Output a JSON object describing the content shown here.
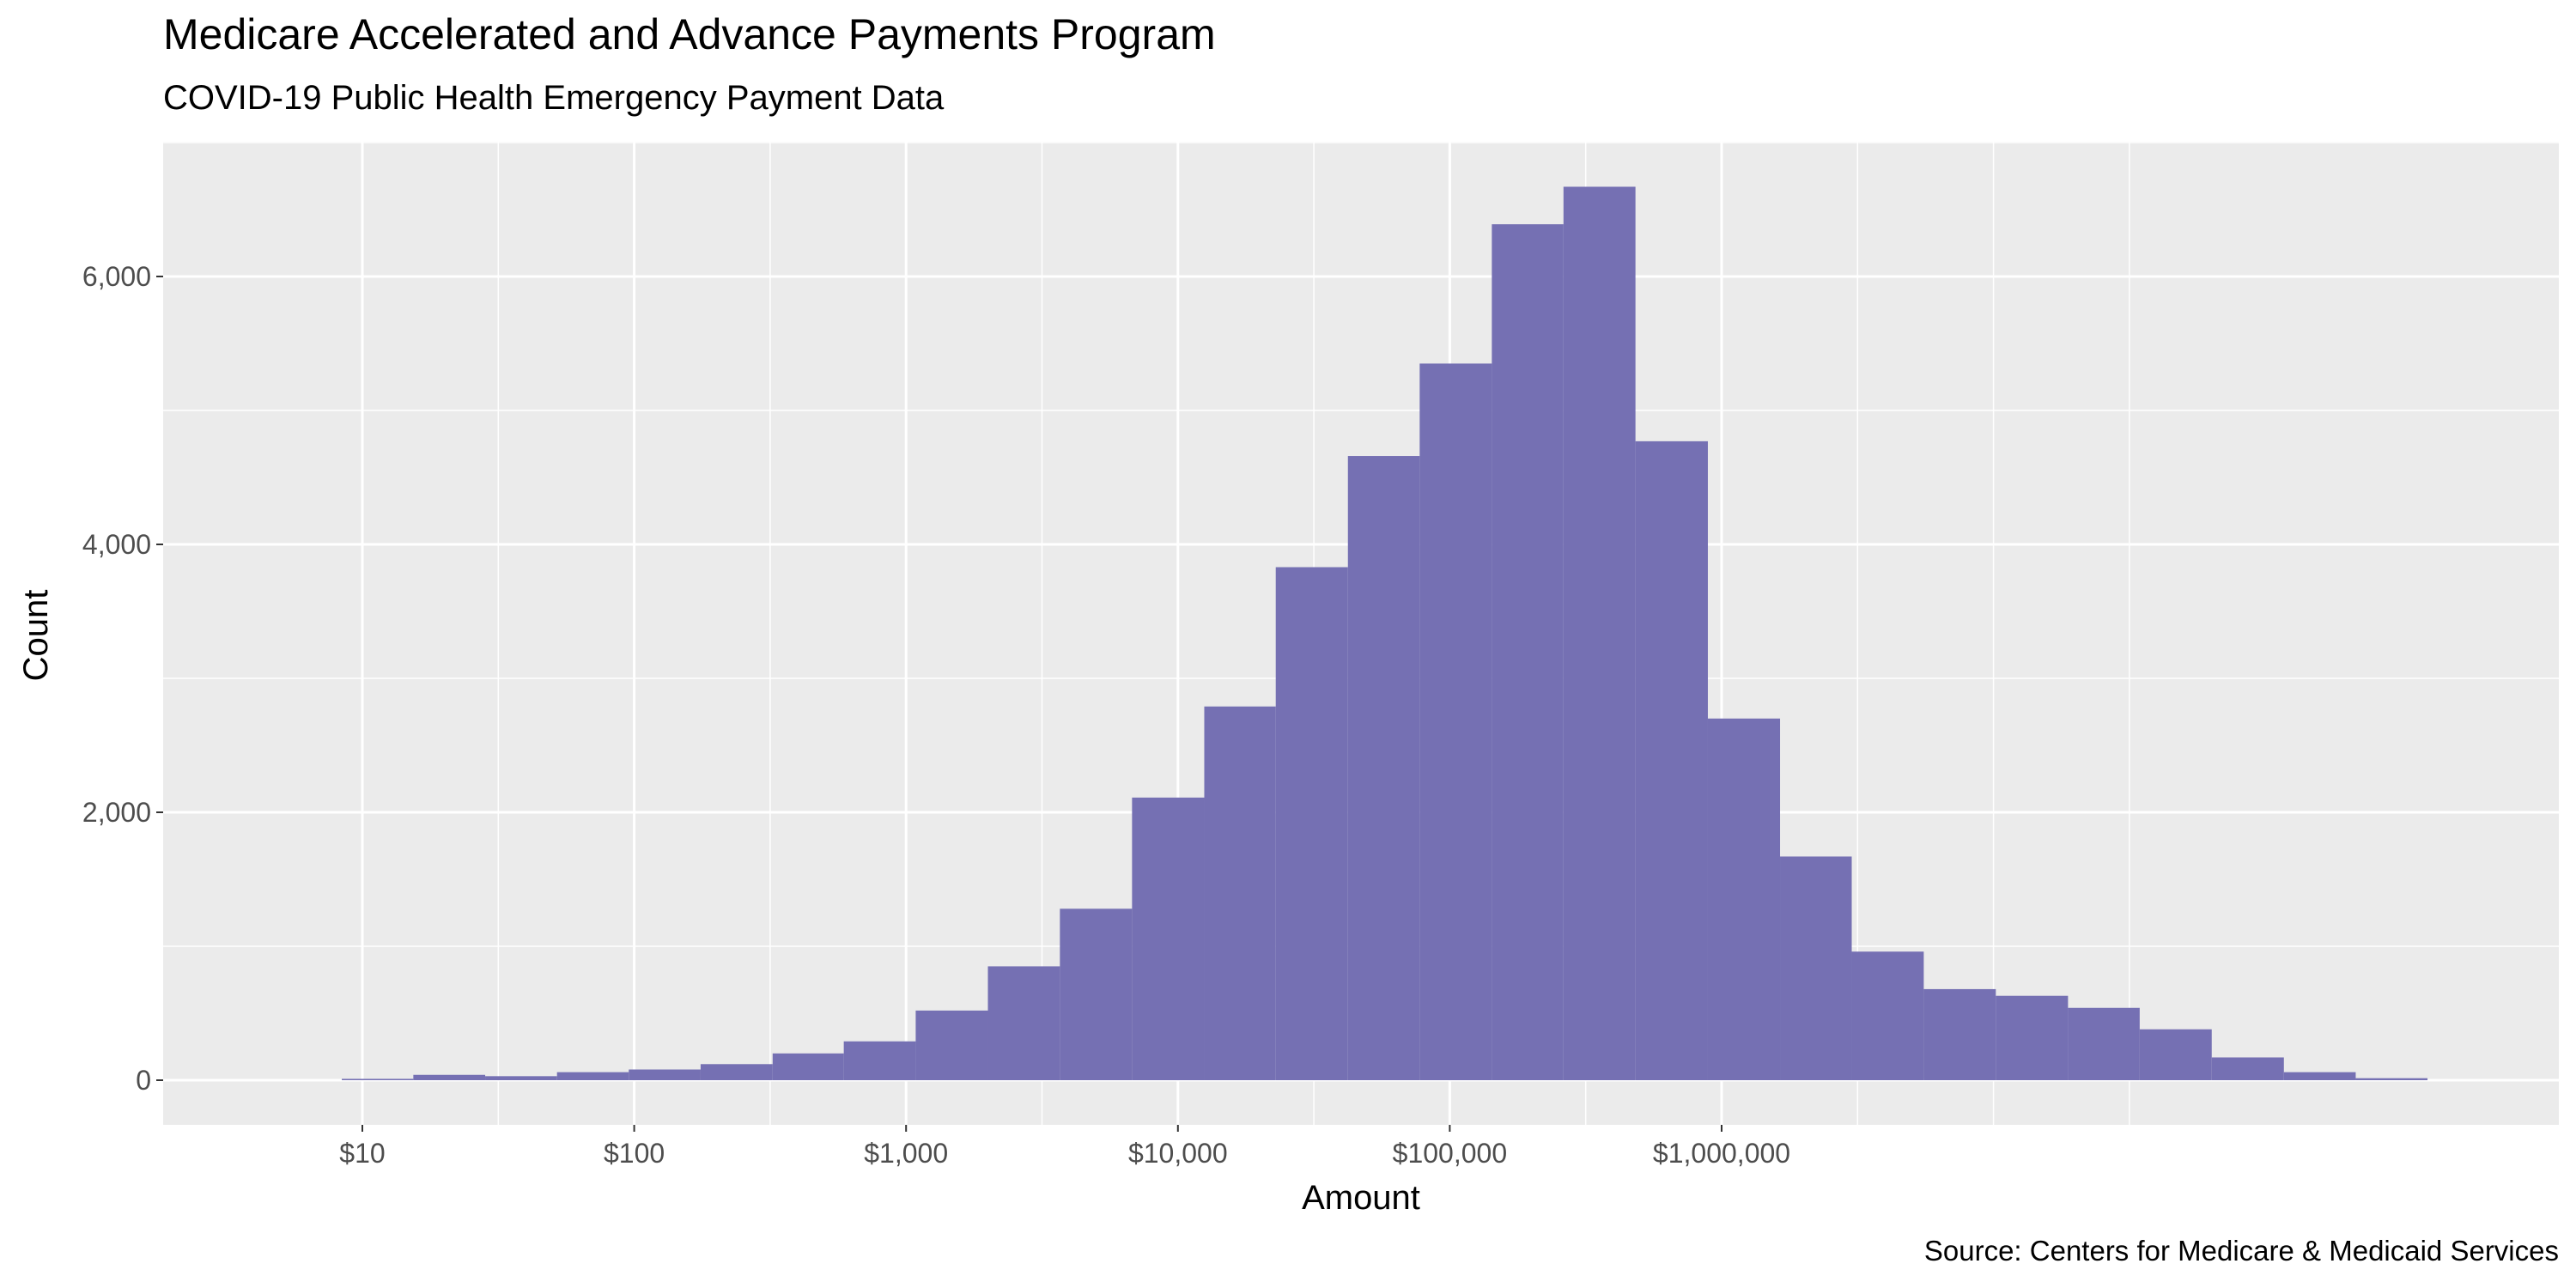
{
  "chart_data": {
    "type": "bar",
    "title": "Medicare Accelerated and Advance Payments Program",
    "subtitle": "COVID-19 Public Health Emergency Payment Data",
    "xlabel": "Amount",
    "ylabel": "Count",
    "caption": "Source: Centers for Medicare & Medicaid Services",
    "x_scale": "log10",
    "xlim": [
      1.6,
      10000000000
    ],
    "ylim": [
      0,
      6900
    ],
    "x_tick_values": [
      10,
      100,
      1000,
      10000,
      100000,
      1000000
    ],
    "x_tick_labels": [
      "$10",
      "$100",
      "$1,000",
      "$10,000",
      "$100,000",
      "$1,000,000"
    ],
    "y_tick_values": [
      0,
      2000,
      4000,
      6000
    ],
    "y_tick_labels": [
      "0",
      "2,000",
      "4,000",
      "6,000"
    ],
    "grid": true,
    "legend": "none",
    "bar_color": "#7570b3",
    "bins": [
      {
        "x_min": 8.4,
        "x_max": 15.4,
        "count": 10
      },
      {
        "x_min": 15.4,
        "x_max": 28.3,
        "count": 40
      },
      {
        "x_min": 28.3,
        "x_max": 52,
        "count": 30
      },
      {
        "x_min": 52,
        "x_max": 95.5,
        "count": 60
      },
      {
        "x_min": 95.5,
        "x_max": 175.5,
        "count": 80
      },
      {
        "x_min": 175.5,
        "x_max": 323,
        "count": 120
      },
      {
        "x_min": 323,
        "x_max": 590,
        "count": 200
      },
      {
        "x_min": 590,
        "x_max": 1085,
        "count": 290
      },
      {
        "x_min": 1085,
        "x_max": 2000,
        "count": 520
      },
      {
        "x_min": 2000,
        "x_max": 3680,
        "count": 850
      },
      {
        "x_min": 3680,
        "x_max": 6780,
        "count": 1280
      },
      {
        "x_min": 6780,
        "x_max": 12500,
        "count": 2110
      },
      {
        "x_min": 12500,
        "x_max": 22900,
        "count": 2790
      },
      {
        "x_min": 22900,
        "x_max": 42200,
        "count": 3830
      },
      {
        "x_min": 42200,
        "x_max": 77500,
        "count": 4660
      },
      {
        "x_min": 77500,
        "x_max": 142800,
        "count": 5350
      },
      {
        "x_min": 142800,
        "x_max": 262000,
        "count": 6390
      },
      {
        "x_min": 262000,
        "x_max": 482000,
        "count": 6670
      },
      {
        "x_min": 482000,
        "x_max": 890000,
        "count": 4770
      },
      {
        "x_min": 890000,
        "x_max": 1640000,
        "count": 2700
      },
      {
        "x_min": 1640000,
        "x_max": 3010000,
        "count": 1670
      },
      {
        "x_min": 3010000,
        "x_max": 5540000,
        "count": 960
      },
      {
        "x_min": 5540000,
        "x_max": 10200000,
        "count": 680
      },
      {
        "x_min": 10200000,
        "x_max": 18800000,
        "count": 630
      },
      {
        "x_min": 18800000,
        "x_max": 34500000,
        "count": 540
      },
      {
        "x_min": 34500000,
        "x_max": 63500000,
        "count": 380
      },
      {
        "x_min": 63500000,
        "x_max": 117000000,
        "count": 170
      },
      {
        "x_min": 117000000,
        "x_max": 215000000,
        "count": 60
      },
      {
        "x_min": 215000000,
        "x_max": 395000000,
        "count": 15
      }
    ]
  }
}
